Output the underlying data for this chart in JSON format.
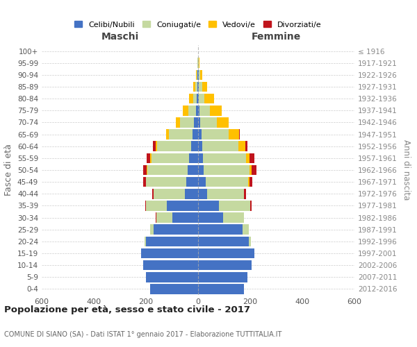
{
  "age_groups": [
    "0-4",
    "5-9",
    "10-14",
    "15-19",
    "20-24",
    "25-29",
    "30-34",
    "35-39",
    "40-44",
    "45-49",
    "50-54",
    "55-59",
    "60-64",
    "65-69",
    "70-74",
    "75-79",
    "80-84",
    "85-89",
    "90-94",
    "95-99",
    "100+"
  ],
  "birth_years": [
    "2012-2016",
    "2007-2011",
    "2002-2006",
    "1997-2001",
    "1992-1996",
    "1987-1991",
    "1982-1986",
    "1977-1981",
    "1972-1976",
    "1967-1971",
    "1962-1966",
    "1957-1961",
    "1952-1956",
    "1947-1951",
    "1942-1946",
    "1937-1941",
    "1932-1936",
    "1927-1931",
    "1922-1926",
    "1917-1921",
    "≤ 1916"
  ],
  "colors": {
    "celibe": "#4472c4",
    "coniugato": "#c5d9a0",
    "vedovo": "#ffc000",
    "divorziato": "#c0141c"
  },
  "maschi": {
    "celibe": [
      185,
      200,
      210,
      220,
      200,
      170,
      100,
      120,
      50,
      45,
      40,
      35,
      28,
      22,
      15,
      8,
      5,
      3,
      2,
      1,
      0
    ],
    "coniugato": [
      0,
      0,
      0,
      0,
      5,
      15,
      60,
      80,
      120,
      155,
      155,
      145,
      130,
      90,
      55,
      30,
      15,
      8,
      4,
      1,
      0
    ],
    "vedovo": [
      0,
      0,
      0,
      0,
      0,
      0,
      0,
      0,
      0,
      1,
      2,
      3,
      5,
      10,
      15,
      20,
      15,
      8,
      2,
      0,
      0
    ],
    "divorziato": [
      0,
      0,
      0,
      0,
      0,
      0,
      2,
      2,
      5,
      10,
      15,
      15,
      10,
      2,
      0,
      0,
      0,
      0,
      0,
      0,
      0
    ]
  },
  "femmine": {
    "nubile": [
      175,
      190,
      205,
      215,
      195,
      170,
      95,
      80,
      35,
      28,
      22,
      18,
      15,
      12,
      8,
      5,
      3,
      3,
      2,
      1,
      0
    ],
    "coniugata": [
      0,
      0,
      0,
      0,
      8,
      25,
      80,
      120,
      140,
      165,
      175,
      165,
      140,
      105,
      65,
      40,
      22,
      12,
      5,
      2,
      0
    ],
    "vedova": [
      0,
      0,
      0,
      0,
      0,
      0,
      0,
      1,
      2,
      3,
      8,
      15,
      25,
      40,
      45,
      45,
      35,
      20,
      8,
      2,
      0
    ],
    "divorziata": [
      0,
      0,
      0,
      0,
      0,
      0,
      1,
      3,
      8,
      12,
      20,
      18,
      10,
      2,
      0,
      0,
      0,
      0,
      0,
      0,
      0
    ]
  },
  "xlim": 600,
  "title": "Popolazione per età, sesso e stato civile - 2017",
  "subtitle": "COMUNE DI SIANO (SA) - Dati ISTAT 1° gennaio 2017 - Elaborazione TUTTITALIA.IT",
  "ylabel_left": "Fasce di età",
  "ylabel_right": "Anni di nascita",
  "xlabel_maschi": "Maschi",
  "xlabel_femmine": "Femmine",
  "legend_labels": [
    "Celibi/Nubili",
    "Coniugati/e",
    "Vedovi/e",
    "Divorziati/e"
  ]
}
